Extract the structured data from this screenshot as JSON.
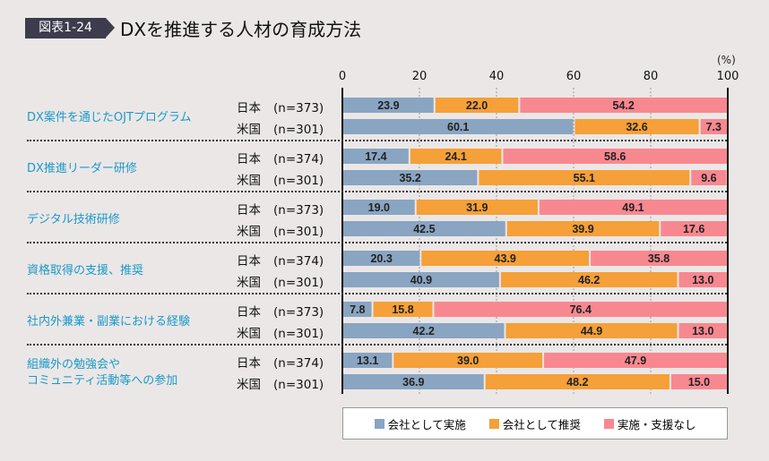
{
  "header": {
    "figure_number": "図表1-24",
    "title": "DXを推進する人材の育成方法"
  },
  "chart_data": {
    "type": "bar",
    "orientation": "horizontal-stacked",
    "title": "DXを推進する人材の育成方法",
    "unit": "(%)",
    "xlim": [
      0,
      100
    ],
    "ticks": [
      "0",
      "20",
      "40",
      "60",
      "80",
      "100"
    ],
    "grid": true,
    "legend_position": "bottom",
    "colors": [
      "#89a5c2",
      "#f5a038",
      "#f88890"
    ],
    "series_names": [
      "会社として実施",
      "会社として推奨",
      "実施・支援なし"
    ],
    "groups": [
      {
        "category": "DX案件を通じたOJTプログラム",
        "rows": [
          {
            "label": "日本",
            "n": "(n=373)",
            "values": [
              23.9,
              22.0,
              54.2
            ]
          },
          {
            "label": "米国",
            "n": "(n=301)",
            "values": [
              60.1,
              32.6,
              7.3
            ]
          }
        ]
      },
      {
        "category": "DX推進リーダー研修",
        "rows": [
          {
            "label": "日本",
            "n": "(n=374)",
            "values": [
              17.4,
              24.1,
              58.6
            ]
          },
          {
            "label": "米国",
            "n": "(n=301)",
            "values": [
              35.2,
              55.1,
              9.6
            ]
          }
        ]
      },
      {
        "category": "デジタル技術研修",
        "rows": [
          {
            "label": "日本",
            "n": "(n=373)",
            "values": [
              19.0,
              31.9,
              49.1
            ]
          },
          {
            "label": "米国",
            "n": "(n=301)",
            "values": [
              42.5,
              39.9,
              17.6
            ]
          }
        ]
      },
      {
        "category": "資格取得の支援、推奨",
        "rows": [
          {
            "label": "日本",
            "n": "(n=374)",
            "values": [
              20.3,
              43.9,
              35.8
            ]
          },
          {
            "label": "米国",
            "n": "(n=301)",
            "values": [
              40.9,
              46.2,
              13.0
            ]
          }
        ]
      },
      {
        "category": "社内外兼業・副業における経験",
        "rows": [
          {
            "label": "日本",
            "n": "(n=373)",
            "values": [
              7.8,
              15.8,
              76.4
            ]
          },
          {
            "label": "米国",
            "n": "(n=301)",
            "values": [
              42.2,
              44.9,
              13.0
            ]
          }
        ]
      },
      {
        "category": "組織外の勉強会や\nコミュニティ活動等への参加",
        "rows": [
          {
            "label": "日本",
            "n": "(n=374)",
            "values": [
              13.1,
              39.0,
              47.9
            ]
          },
          {
            "label": "米国",
            "n": "(n=301)",
            "values": [
              36.9,
              48.2,
              15.0
            ]
          }
        ]
      }
    ]
  }
}
